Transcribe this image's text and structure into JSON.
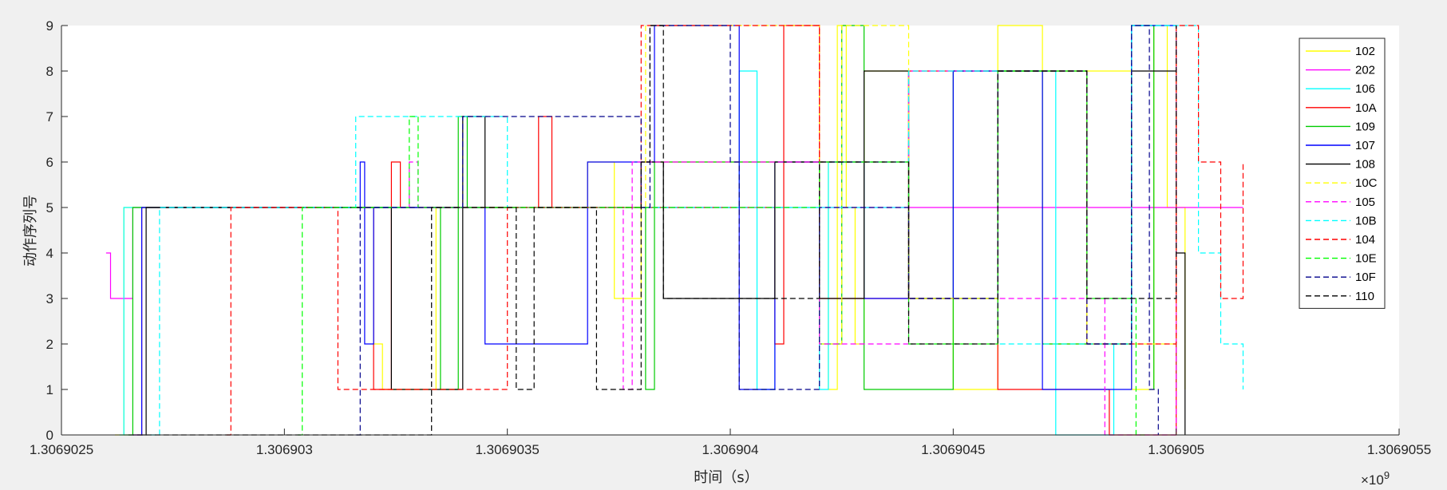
{
  "chart_data": {
    "type": "line",
    "title": "",
    "xlabel": "时间（s）",
    "ylabel": "动作序列号",
    "x_multiplier": "×10",
    "x_multiplier_exp": "9",
    "xlim": [
      1.3069025,
      1.3069055
    ],
    "ylim": [
      0,
      9
    ],
    "x_ticks": [
      1.3069025,
      1.306903,
      1.3069035,
      1.306904,
      1.3069045,
      1.306905,
      1.3069055
    ],
    "x_tick_labels": [
      "1.3069025",
      "1.306903",
      "1.3069035",
      "1.306904",
      "1.3069045",
      "1.306905",
      "1.3069055"
    ],
    "y_ticks": [
      0,
      1,
      2,
      3,
      4,
      5,
      6,
      7,
      8,
      9
    ],
    "y_tick_labels": [
      "0",
      "1",
      "2",
      "3",
      "4",
      "5",
      "6",
      "7",
      "8",
      "9"
    ],
    "grid": false,
    "legend_position": "top-right",
    "series": [
      {
        "name": "102",
        "color": "#ffff00",
        "dash": false,
        "x": [
          1.30690262,
          1.30690264,
          1.30690266,
          1.30690268,
          1.30690305,
          1.30690318,
          1.3069032,
          1.30690322,
          1.30690334,
          1.30690336,
          1.30690367,
          1.30690368,
          1.3069037,
          1.30690374,
          1.3069038,
          1.306904,
          1.3069042,
          1.30690422,
          1.30690424,
          1.30690426,
          1.30690428,
          1.3069043,
          1.3069044,
          1.3069045,
          1.3069046,
          1.3069047,
          1.3069048,
          1.3069049,
          1.30690495,
          1.30690498,
          1.30690502
        ],
        "y": [
          0,
          5,
          5,
          5,
          5,
          5,
          2,
          1,
          5,
          5,
          5,
          6,
          6,
          3,
          6,
          6,
          6,
          1,
          9,
          5,
          2,
          8,
          3,
          1,
          9,
          2,
          8,
          1,
          9,
          5,
          1
        ]
      },
      {
        "name": "202",
        "color": "#ff00ff",
        "dash": false,
        "x": [
          1.3069026,
          1.30690261,
          1.30690265,
          1.30690266,
          1.306903,
          1.3069036,
          1.306904,
          1.3069045,
          1.306905,
          1.30690515
        ],
        "y": [
          4,
          3,
          3,
          5,
          5,
          5,
          5,
          5,
          5,
          5
        ]
      },
      {
        "name": "106",
        "color": "#00ffff",
        "dash": false,
        "x": [
          1.30690263,
          1.30690264,
          1.30690265,
          1.3069035,
          1.3069038,
          1.306904,
          1.30690402,
          1.30690403,
          1.30690406,
          1.30690407,
          1.3069041,
          1.3069042,
          1.30690422,
          1.3069044,
          1.3069046,
          1.30690473,
          1.30690474,
          1.30690484,
          1.30690486,
          1.3069049,
          1.306905
        ],
        "y": [
          0,
          5,
          5,
          5,
          5,
          5,
          8,
          8,
          1,
          1,
          5,
          1,
          6,
          3,
          8,
          0,
          0,
          0,
          2,
          9,
          1
        ]
      },
      {
        "name": "10A",
        "color": "#ff0000",
        "dash": false,
        "x": [
          1.30690266,
          1.30690268,
          1.30690318,
          1.3069032,
          1.30690324,
          1.30690326,
          1.30690357,
          1.30690358,
          1.3069036,
          1.306904,
          1.3069041,
          1.30690412,
          1.30690416,
          1.3069042,
          1.3069044,
          1.3069046,
          1.30690485,
          1.30690487,
          1.306905
        ],
        "y": [
          0,
          5,
          5,
          1,
          6,
          5,
          7,
          7,
          5,
          5,
          2,
          9,
          9,
          3,
          8,
          1,
          0,
          0,
          9
        ]
      },
      {
        "name": "109",
        "color": "#00cc00",
        "dash": false,
        "x": [
          1.30690264,
          1.30690266,
          1.3069033,
          1.30690335,
          1.30690339,
          1.30690341,
          1.30690365,
          1.30690381,
          1.30690383,
          1.3069042,
          1.30690425,
          1.3069043,
          1.3069045,
          1.3069047,
          1.3069049,
          1.30690495
        ],
        "y": [
          0,
          5,
          5,
          1,
          7,
          5,
          5,
          1,
          6,
          2,
          9,
          1,
          8,
          2,
          9,
          1
        ]
      },
      {
        "name": "107",
        "color": "#0000ff",
        "dash": false,
        "x": [
          1.30690266,
          1.30690268,
          1.30690317,
          1.30690318,
          1.30690319,
          1.3069032,
          1.3069034,
          1.30690345,
          1.30690367,
          1.30690368,
          1.30690383,
          1.30690384,
          1.30690402,
          1.3069041,
          1.3069043,
          1.3069045,
          1.3069047,
          1.3069049,
          1.306905
        ],
        "y": [
          0,
          5,
          6,
          2,
          2,
          5,
          5,
          2,
          2,
          6,
          9,
          9,
          1,
          6,
          3,
          8,
          1,
          9,
          5
        ]
      },
      {
        "name": "108",
        "color": "#000000",
        "dash": false,
        "x": [
          1.30690268,
          1.30690269,
          1.30690321,
          1.30690324,
          1.3069034,
          1.30690345,
          1.3069035,
          1.3069038,
          1.30690385,
          1.306904,
          1.3069041,
          1.3069042,
          1.3069043,
          1.3069044,
          1.3069046,
          1.3069048,
          1.3069049,
          1.306905,
          1.30690502
        ],
        "y": [
          0,
          5,
          5,
          1,
          7,
          5,
          5,
          6,
          3,
          3,
          6,
          3,
          8,
          3,
          8,
          2,
          8,
          4,
          0
        ]
      },
      {
        "name": "10C",
        "color": "#ffff00",
        "dash": true,
        "x": [
          1.3069033,
          1.30690332,
          1.30690379,
          1.30690381,
          1.3069042,
          1.30690425,
          1.3069044,
          1.3069046,
          1.3069048,
          1.306905
        ],
        "y": [
          5,
          5,
          5,
          9,
          2,
          9,
          3,
          8,
          2,
          9
        ]
      },
      {
        "name": "105",
        "color": "#ff00ff",
        "dash": true,
        "x": [
          1.30690326,
          1.30690328,
          1.3069033,
          1.30690375,
          1.30690376,
          1.30690378,
          1.306904,
          1.3069042,
          1.3069044,
          1.3069046,
          1.30690484,
          1.30690486,
          1.306905
        ],
        "y": [
          5,
          6,
          5,
          5,
          1,
          6,
          6,
          2,
          8,
          3,
          0,
          0,
          9
        ]
      },
      {
        "name": "10B",
        "color": "#00ffff",
        "dash": true,
        "x": [
          1.3069027,
          1.30690272,
          1.30690315,
          1.30690316,
          1.3069035,
          1.3069036,
          1.306904,
          1.3069044,
          1.3069046,
          1.3069049,
          1.30690505,
          1.3069051,
          1.30690515
        ],
        "y": [
          0,
          5,
          5,
          7,
          5,
          5,
          5,
          8,
          2,
          9,
          4,
          2,
          1
        ]
      },
      {
        "name": "104",
        "color": "#ff0000",
        "dash": true,
        "x": [
          1.30690287,
          1.30690288,
          1.3069031,
          1.30690312,
          1.3069035,
          1.30690378,
          1.3069038,
          1.3069042,
          1.3069044,
          1.3069046,
          1.3069048,
          1.306905,
          1.30690505,
          1.3069051,
          1.30690515
        ],
        "y": [
          0,
          5,
          5,
          1,
          5,
          5,
          9,
          6,
          3,
          8,
          2,
          9,
          6,
          3,
          6
        ]
      },
      {
        "name": "10E",
        "color": "#00ff00",
        "dash": true,
        "x": [
          1.30690303,
          1.30690304,
          1.30690327,
          1.30690328,
          1.3069033,
          1.3069038,
          1.3069042,
          1.3069044,
          1.3069046,
          1.3069048,
          1.30690491,
          1.30690493
        ],
        "y": [
          0,
          5,
          5,
          7,
          5,
          5,
          6,
          2,
          8,
          3,
          0,
          0
        ]
      },
      {
        "name": "10F",
        "color": "#00008b",
        "dash": true,
        "x": [
          1.30690316,
          1.30690317,
          1.30690338,
          1.3069034,
          1.3069038,
          1.30690382,
          1.306904,
          1.30690402,
          1.3069042,
          1.3069044,
          1.3069046,
          1.3069048,
          1.3069049,
          1.30690494,
          1.30690496
        ],
        "y": [
          0,
          5,
          5,
          7,
          5,
          9,
          6,
          1,
          5,
          3,
          8,
          2,
          9,
          1,
          0
        ]
      },
      {
        "name": "110",
        "color": "#000000",
        "dash": true,
        "x": [
          1.30690265,
          1.30690266,
          1.30690332,
          1.30690333,
          1.3069035,
          1.30690352,
          1.30690355,
          1.30690356,
          1.3069037,
          1.3069038,
          1.30690382,
          1.30690385,
          1.3069042,
          1.3069044,
          1.3069046,
          1.3069048,
          1.306905
        ],
        "y": [
          0,
          0,
          0,
          5,
          5,
          1,
          1,
          5,
          1,
          6,
          9,
          3,
          6,
          2,
          8,
          3,
          9
        ]
      }
    ]
  }
}
